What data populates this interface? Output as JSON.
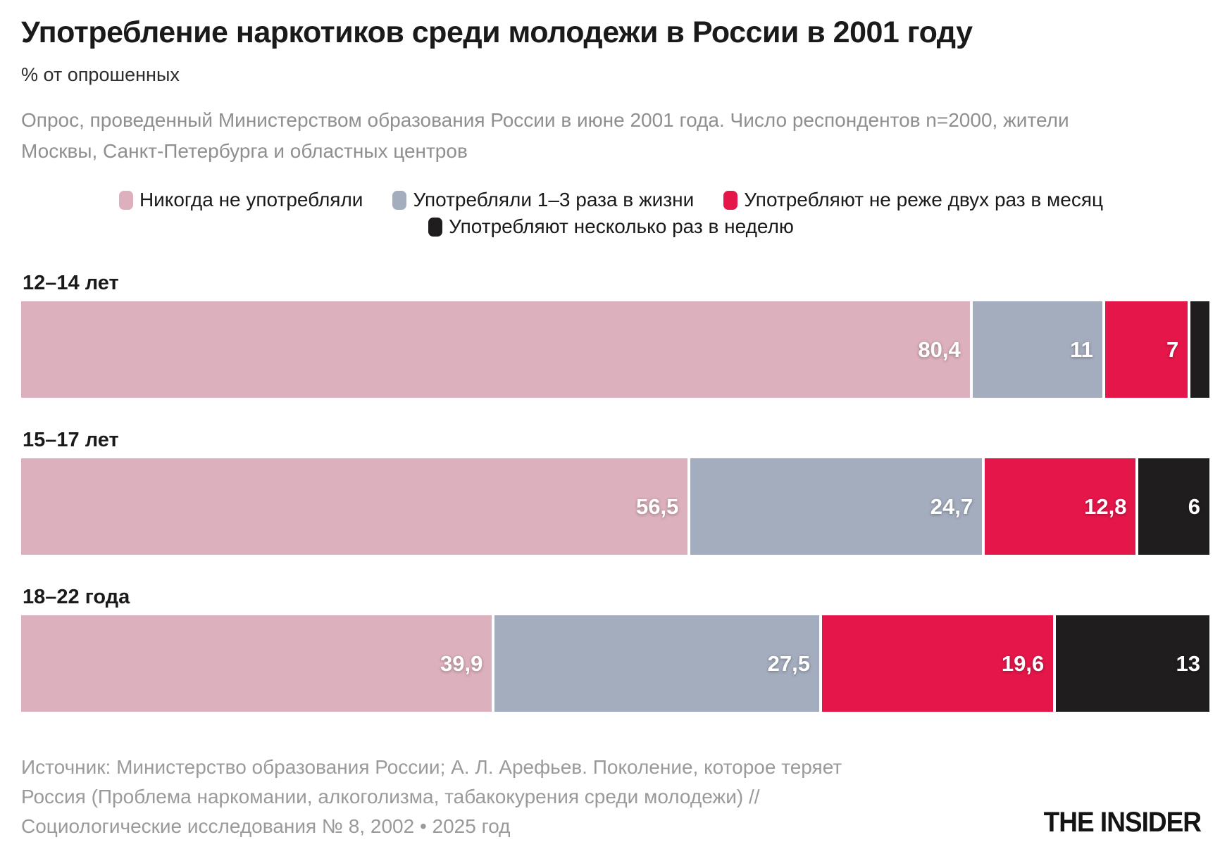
{
  "header": {
    "title": "Употребление наркотиков среди молодежи в России в 2001 году",
    "subtitle": "% от опрошенных",
    "description": "Опрос, проведенный Министерством образования России в июне 2001 года. Число респондентов n=2000, жители Москвы, Санкт-Петербурга и областных центров"
  },
  "chart_data": {
    "type": "bar",
    "orientation": "horizontal",
    "stacked": true,
    "unit": "% от опрошенных",
    "xlim": [
      0,
      100
    ],
    "grid": false,
    "legend_position": "top",
    "categories": [
      "12–14 лет",
      "15–17 лет",
      "18–22 года"
    ],
    "series": [
      {
        "name": "Никогда не употребляли",
        "color": "#dcb0bc",
        "values": [
          80.4,
          56.5,
          39.9
        ],
        "labels": [
          "80,4",
          "56,5",
          "39,9"
        ]
      },
      {
        "name": "Употребляли 1–3 раза в жизни",
        "color": "#a4adbe",
        "values": [
          11,
          24.7,
          27.5
        ],
        "labels": [
          "11",
          "24,7",
          "27,5"
        ]
      },
      {
        "name": "Употребляют не реже двух раз в месяц",
        "color": "#e5164a",
        "values": [
          7,
          12.8,
          19.6
        ],
        "labels": [
          "7",
          "12,8",
          "19,6"
        ]
      },
      {
        "name": "Употребляют несколько раз в неделю",
        "color": "#1f1d1e",
        "values": [
          1.6,
          6,
          13
        ],
        "labels": [
          "",
          "6",
          "13"
        ]
      }
    ]
  },
  "footer": {
    "source": "Источник: Министерство образования России; А. Л. Арефьев. Поколение, которое теряет Россия (Проблема наркомании, алкоголизма, табакокурения среди молодежи) // Социологические исследования № 8, 2002 • 2025 год",
    "brand": "THE INSIDER"
  }
}
